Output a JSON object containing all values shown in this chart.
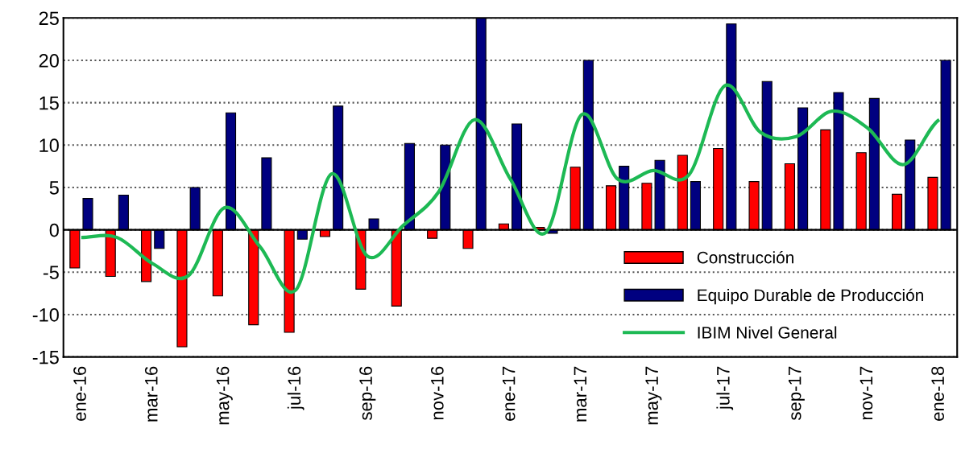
{
  "chart_data": {
    "type": "bar",
    "categories": [
      "ene-16",
      null,
      "mar-16",
      null,
      "may-16",
      null,
      "jul-16",
      null,
      "sep-16",
      null,
      "nov-16",
      null,
      "ene-17",
      null,
      "mar-17",
      null,
      "may-17",
      null,
      "jul-17",
      null,
      "sep-17",
      null,
      "nov-17",
      null,
      "ene-18"
    ],
    "series": [
      {
        "name": "Construcción",
        "color": "#ff0000",
        "values": [
          -4.5,
          -5.5,
          -6.1,
          -13.8,
          -7.8,
          -11.2,
          -12.1,
          -0.8,
          -7.0,
          -9.0,
          -1.0,
          -2.2,
          0.7,
          0.3,
          7.4,
          5.2,
          5.5,
          8.8,
          9.6,
          5.7,
          7.8,
          11.8,
          9.1,
          4.2,
          6.2
        ]
      },
      {
        "name": "Equipo Durable de Producción",
        "color": "#000080",
        "values": [
          3.7,
          4.1,
          -2.2,
          5.0,
          13.8,
          8.5,
          -1.1,
          14.6,
          1.3,
          10.2,
          10.0,
          25.0,
          12.5,
          -0.4,
          20.0,
          7.5,
          8.2,
          5.7,
          24.3,
          17.5,
          14.4,
          16.2,
          15.5,
          10.6,
          20.0
        ]
      },
      {
        "name": "IBIM Nivel General",
        "type": "line",
        "color": "#1db954",
        "values": [
          -0.9,
          -0.9,
          -4.0,
          -5.4,
          2.6,
          -2.0,
          -7.1,
          6.6,
          -3.1,
          0.5,
          4.5,
          13.0,
          6.0,
          -0.3,
          13.6,
          6.0,
          7.0,
          6.5,
          17.0,
          11.5,
          11.0,
          14.0,
          12.0,
          7.7,
          13.0
        ]
      }
    ],
    "ylim": [
      -15,
      25
    ],
    "yticks": [
      -15,
      -10,
      -5,
      0,
      5,
      10,
      15,
      20,
      25
    ],
    "grid": "y",
    "legend": "bottom right"
  }
}
